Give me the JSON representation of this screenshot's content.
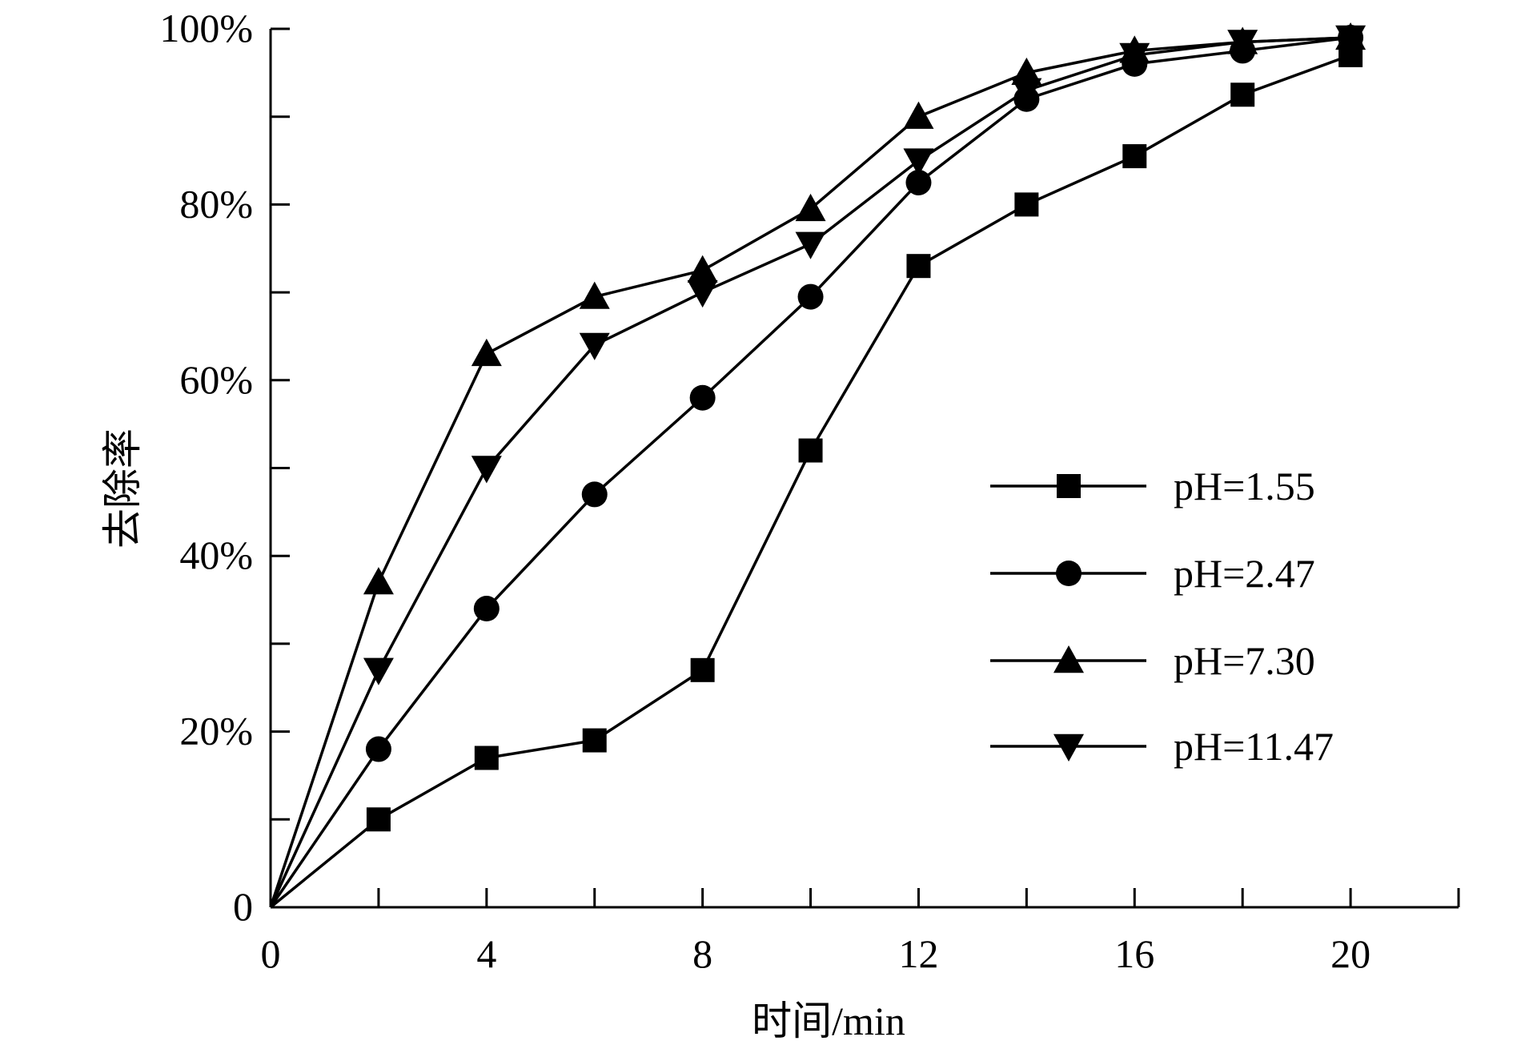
{
  "chart_data": {
    "type": "line",
    "title": "",
    "xlabel": "时间/min",
    "ylabel": "去除率",
    "xlim": [
      0,
      22
    ],
    "ylim": [
      0,
      100
    ],
    "x": [
      0,
      2,
      4,
      6,
      8,
      10,
      12,
      14,
      16,
      18,
      20
    ],
    "x_ticks": [
      0,
      2,
      4,
      6,
      8,
      10,
      12,
      14,
      16,
      18,
      20,
      22
    ],
    "x_tick_labels": [
      {
        "value": 0,
        "label": "0"
      },
      {
        "value": 4,
        "label": "4"
      },
      {
        "value": 8,
        "label": "8"
      },
      {
        "value": 12,
        "label": "12"
      },
      {
        "value": 16,
        "label": "16"
      },
      {
        "value": 20,
        "label": "20"
      }
    ],
    "y_ticks": [
      0,
      10,
      20,
      30,
      40,
      50,
      60,
      70,
      80,
      90,
      100
    ],
    "y_tick_labels": [
      {
        "value": 0,
        "label": "0"
      },
      {
        "value": 20,
        "label": "20%"
      },
      {
        "value": 40,
        "label": "40%"
      },
      {
        "value": 60,
        "label": "60%"
      },
      {
        "value": 80,
        "label": "80%"
      },
      {
        "value": 100,
        "label": "100%"
      }
    ],
    "grid": false,
    "legend_position": "right",
    "series": [
      {
        "name": "pH=1.55",
        "marker": "square",
        "values": [
          0,
          10,
          17,
          19,
          27,
          52,
          73,
          80,
          85.5,
          92.5,
          97
        ]
      },
      {
        "name": "pH=2.47",
        "marker": "circle",
        "values": [
          0,
          18,
          34,
          47,
          58,
          69.5,
          82.5,
          92,
          96,
          97.5,
          99
        ]
      },
      {
        "name": "pH=7.30",
        "marker": "triangle-up",
        "values": [
          0,
          37,
          63,
          69.5,
          72.5,
          79.5,
          90,
          95,
          97.5,
          98.5,
          99
        ]
      },
      {
        "name": "pH=11.47",
        "marker": "triangle-down",
        "values": [
          0,
          27,
          50,
          64,
          70,
          75.5,
          85,
          93,
          97,
          98.5,
          99
        ]
      }
    ]
  }
}
